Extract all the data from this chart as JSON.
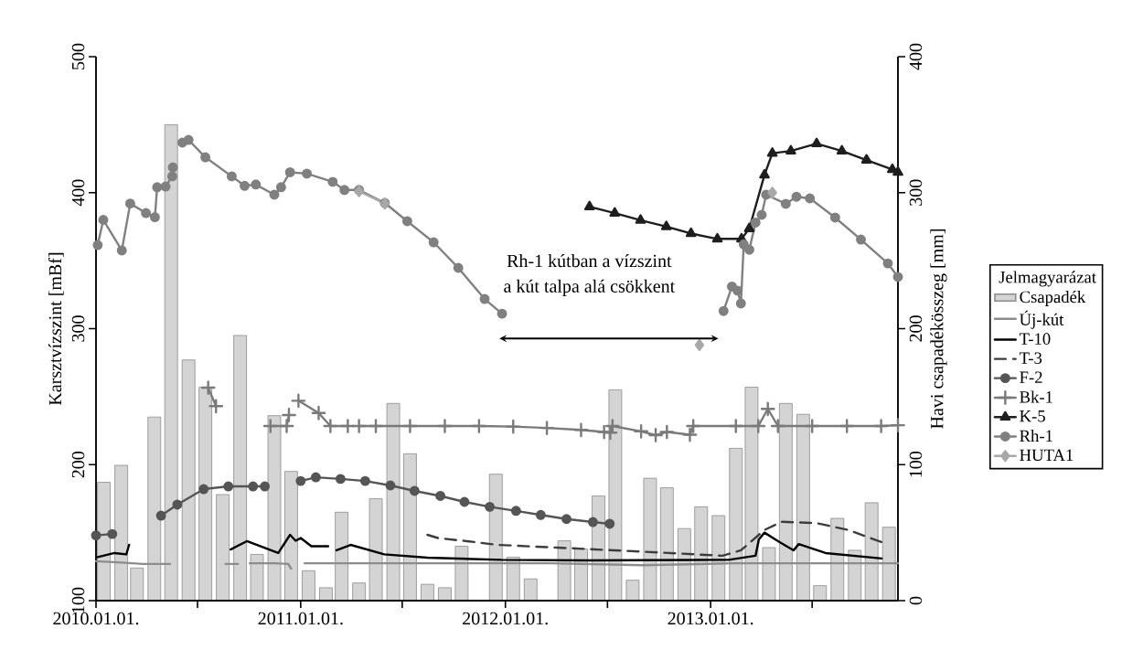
{
  "chart_data": {
    "type": "line",
    "ylabel": "Karsztvízszint [mBf]",
    "y2label": "Havi csapadékösszeg [mm]",
    "legend_title": "Jelmagyarázat",
    "legend": "right",
    "annotations": [
      "Rh-1 kútban a vízszint",
      "a kút talpa alá csökkent"
    ],
    "xlim": [
      "2010-01-01",
      "2013-12-01"
    ],
    "xticks": [
      {
        "value": "2010-01-01",
        "label": "2010.01.01."
      },
      {
        "value": "2010-07-01",
        "label": null
      },
      {
        "value": "2011-01-01",
        "label": "2011.01.01."
      },
      {
        "value": "2011-07-01",
        "label": null
      },
      {
        "value": "2012-01-01",
        "label": "2012.01.01."
      },
      {
        "value": "2012-07-01",
        "label": null
      },
      {
        "value": "2013-01-01",
        "label": "2013.01.01."
      },
      {
        "value": "2013-07-01",
        "label": null
      }
    ],
    "ylim": [
      100,
      500
    ],
    "yticks": [
      100,
      200,
      300,
      400,
      500
    ],
    "y2lim": [
      0,
      400
    ],
    "y2ticks": [
      0,
      100,
      200,
      300,
      400
    ],
    "series": [
      {
        "name": "Csapadék",
        "type": "bar",
        "axis": "y2",
        "color": "#d4d4d4",
        "x": [
          "2010-01-15",
          "2010-02-15",
          "2010-03-15",
          "2010-04-15",
          "2010-05-15",
          "2010-06-15",
          "2010-07-15",
          "2010-08-15",
          "2010-09-15",
          "2010-10-15",
          "2010-11-15",
          "2010-12-15",
          "2011-01-15",
          "2011-02-15",
          "2011-03-15",
          "2011-04-15",
          "2011-05-15",
          "2011-06-15",
          "2011-07-15",
          "2011-08-15",
          "2011-09-15",
          "2011-10-15",
          "2011-11-15",
          "2011-12-15",
          "2012-01-15",
          "2012-02-15",
          "2012-03-15",
          "2012-04-15",
          "2012-05-15",
          "2012-06-15",
          "2012-07-15",
          "2012-08-15",
          "2012-09-15",
          "2012-10-15",
          "2012-11-15",
          "2012-12-15",
          "2013-01-15",
          "2013-02-15",
          "2013-03-15",
          "2013-04-15",
          "2013-05-15",
          "2013-06-15",
          "2013-07-15",
          "2013-08-15",
          "2013-09-15",
          "2013-10-15",
          "2013-11-15"
        ],
        "values": [
          87,
          99.5,
          24,
          135,
          350,
          177,
          157,
          78,
          195,
          34,
          136,
          95,
          22,
          9.5,
          65,
          13,
          75,
          145,
          108,
          12,
          9.5,
          40,
          0,
          93,
          32,
          16,
          0,
          44,
          38,
          77,
          155,
          15,
          90,
          83,
          53,
          69,
          62.5,
          112,
          157,
          39,
          145,
          137,
          11,
          60.5,
          37,
          72,
          54
        ]
      },
      {
        "name": "Új-kút",
        "color": "#8c8c8c",
        "marker": "none",
        "line_style": "solid",
        "x": [
          "2010-01-01",
          "2010-02-16",
          "2010-03-25",
          "2010-05-13",
          "2010-06-01",
          "2010-08-20",
          "2010-09-11",
          "2010-09-25",
          "2010-10-02",
          "2010-11-15",
          "2010-12-10",
          "2010-12-15",
          "2010-12-25",
          "2011-01-08",
          "2011-07-18",
          "2012-03-20",
          "2012-09-02",
          "2013-02-13",
          "2013-07-25",
          "2013-12-01"
        ],
        "values": [
          129,
          128,
          127,
          127,
          null,
          127,
          127,
          null,
          127.5,
          127.5,
          127,
          123.5,
          null,
          127.5,
          127.5,
          127.5,
          126,
          127.5,
          127.5,
          127.5
        ]
      },
      {
        "name": "T-10",
        "color": "#000000",
        "marker": "none",
        "line_style": "solid",
        "x": [
          "2010-01-04",
          "2010-02-03",
          "2010-02-24",
          "2010-03-01",
          "2010-04-01",
          "2010-08-29",
          "2010-09-27",
          "2010-11-22",
          "2010-12-13",
          "2010-12-23",
          "2011-01-01",
          "2011-01-20",
          "2011-02-19",
          "2011-03-01",
          "2011-03-06",
          "2011-03-31",
          "2011-05-30",
          "2011-08-15",
          "2011-12-25",
          "2012-05-25",
          "2013-02-02",
          "2013-03-22",
          "2013-03-28",
          "2013-04-07",
          "2013-05-04",
          "2013-05-29",
          "2013-06-07",
          "2013-07-25",
          "2013-11-02"
        ],
        "values": [
          132,
          135,
          134,
          141,
          null,
          137.6,
          143.7,
          135,
          148.4,
          144,
          146,
          140,
          140,
          null,
          137,
          141,
          134,
          131.6,
          130,
          129.6,
          130,
          133,
          145,
          150,
          143,
          137,
          141.6,
          135,
          131
        ]
      },
      {
        "name": "T-3",
        "color": "#3c3c3c",
        "marker": "none",
        "line_style": "dashed",
        "x": [
          "2011-08-15",
          "2011-09-03",
          "2011-10-25",
          "2011-12-18",
          "2012-04-02",
          "2012-09-02",
          "2013-01-22",
          "2013-02-24",
          "2013-04-07",
          "2013-05-08",
          "2013-07-09",
          "2013-09-03",
          "2013-11-02"
        ],
        "values": [
          148.4,
          146,
          143.7,
          141,
          139,
          136,
          133,
          137,
          152,
          158,
          157,
          152,
          143
        ]
      },
      {
        "name": "F-2",
        "color": "#555555",
        "marker": "circle",
        "line_style": "solid",
        "x": [
          "2010-01-01",
          "2010-01-30",
          "2010-03-01",
          "2010-04-27",
          "2010-05-26",
          "2010-07-12",
          "2010-08-25",
          "2010-10-08",
          "2010-10-29",
          "2010-11-15",
          "2011-01-01",
          "2011-01-28",
          "2011-03-13",
          "2011-04-26",
          "2011-06-10",
          "2011-07-23",
          "2011-09-07",
          "2011-10-20",
          "2011-12-04",
          "2012-01-20",
          "2012-03-04",
          "2012-04-19",
          "2012-06-05",
          "2012-07-05"
        ],
        "values": [
          148,
          149,
          null,
          162.5,
          170.6,
          182,
          184,
          184,
          184,
          null,
          188,
          190.7,
          189.5,
          188,
          184.7,
          180.7,
          177,
          172.6,
          169,
          166,
          163,
          160,
          157.8,
          156.5
        ]
      },
      {
        "name": "Bk-1",
        "color": "#7a7a7a",
        "marker": "cross",
        "line_style": "solid",
        "x": [
          "2010-07-20",
          "2010-08-03",
          "2010-09-15",
          "2010-11-08",
          "2010-12-07",
          "2010-12-11",
          "2010-12-16",
          "2010-12-28",
          "2011-02-02",
          "2011-02-23",
          "2011-03-26",
          "2011-04-05",
          "2011-04-15",
          "2011-05-15",
          "2011-07-15",
          "2011-09-15",
          "2011-11-15",
          "2012-01-15",
          "2012-03-15",
          "2012-05-15",
          "2012-06-25",
          "2012-07-06",
          "2012-07-10",
          "2012-08-30",
          "2012-09-25",
          "2012-10-15",
          "2012-11-25",
          "2012-12-01",
          "2013-02-15",
          "2013-03-27",
          "2013-04-13",
          "2013-05-01",
          "2013-07-01",
          "2013-09-01",
          "2013-11-01",
          "2013-12-01"
        ],
        "values": [
          256.6,
          243,
          null,
          228.4,
          228.4,
          236.5,
          null,
          247,
          238,
          228.4,
          228.4,
          null,
          228.4,
          228.4,
          228.4,
          228.4,
          228.4,
          228,
          227,
          225.5,
          224,
          223.5,
          228.4,
          224.5,
          221.7,
          224,
          222,
          228.4,
          228.4,
          228.4,
          241,
          228.4,
          228.4,
          228.4,
          228.4,
          229
        ]
      },
      {
        "name": "K-5",
        "color": "#1e1e1e",
        "marker": "triangle",
        "line_style": "solid",
        "x": [
          "2012-05-30",
          "2012-07-14",
          "2012-08-29",
          "2012-10-14",
          "2012-11-27",
          "2013-01-13",
          "2013-02-25",
          "2013-03-11",
          "2013-04-07",
          "2013-04-21",
          "2013-05-24",
          "2013-07-09",
          "2013-08-23",
          "2013-10-06",
          "2013-11-21",
          "2013-12-01"
        ],
        "values": [
          389.7,
          385,
          379.7,
          375,
          370,
          366,
          366,
          373.6,
          413,
          429,
          430.7,
          436,
          430.7,
          424,
          417,
          415
        ]
      },
      {
        "name": "Rh-1",
        "color": "#808080",
        "marker": "circle",
        "line_style": "solid",
        "x": [
          "2010-01-04",
          "2010-01-14",
          "2010-02-16",
          "2010-03-03",
          "2010-03-31",
          "2010-04-16",
          "2010-04-20",
          "2010-05-05",
          "2010-05-17",
          "2010-05-18",
          "2010-05-25",
          "2010-06-04",
          "2010-06-15",
          "2010-07-15",
          "2010-08-31",
          "2010-09-23",
          "2010-10-13",
          "2010-11-15",
          "2010-11-27",
          "2010-12-13",
          "2011-01-12",
          "2011-02-27",
          "2011-03-20",
          "2011-04-15",
          "2011-05-31",
          "2011-07-10",
          "2011-08-26",
          "2011-10-09",
          "2011-11-25",
          "2011-12-26",
          "2012-06-01",
          "2013-01-24",
          "2013-02-08",
          "2013-02-18",
          "2013-02-24",
          "2013-03-01",
          "2013-03-11",
          "2013-03-22",
          "2013-04-02",
          "2013-04-10",
          "2013-05-15",
          "2013-06-03",
          "2013-06-27",
          "2013-08-11",
          "2013-09-26",
          "2013-11-13",
          "2013-12-01"
        ],
        "values": [
          361.5,
          380,
          357.5,
          392,
          385,
          382,
          404,
          404.5,
          412,
          418.6,
          null,
          436.8,
          438.8,
          426,
          412,
          405,
          406,
          398.5,
          404,
          415,
          414,
          408,
          402,
          402,
          392.4,
          379,
          363.5,
          344.7,
          321.8,
          311,
          null,
          313,
          331,
          328,
          318.5,
          362,
          358,
          378,
          383.7,
          398.5,
          391.8,
          397,
          395.8,
          381.7,
          365.5,
          348,
          338
        ]
      },
      {
        "name": "HUTA1",
        "color": "#a8a8a8",
        "marker": "diamond",
        "line_style": "solid",
        "x": [
          "2011-04-15",
          "2011-05-31",
          "2011-09-01",
          "2012-12-12",
          "2013-02-01",
          "2013-04-21"
        ],
        "values": [
          401,
          392,
          null,
          288,
          null,
          400
        ]
      }
    ]
  }
}
